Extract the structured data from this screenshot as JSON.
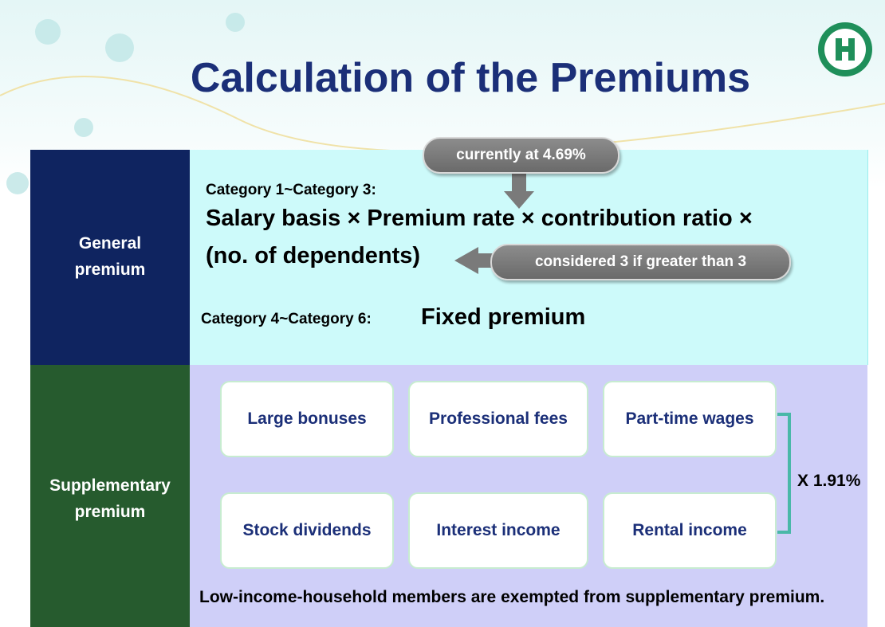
{
  "title": "Calculation of the Premiums",
  "general": {
    "label": "General premium",
    "group_a": "Category 1~Category 3:",
    "formula_line1": "Salary basis × Premium rate × contribution ratio ×",
    "formula_line2": "(no. of dependents)",
    "rate_callout": "currently at 4.69%",
    "dependents_callout": "considered 3 if greater than 3",
    "group_b": "Category 4~Category 6:",
    "group_b_formula": "Fixed premium"
  },
  "supplementary": {
    "label": "Supplementary premium",
    "items": [
      "Large bonuses",
      "Professional fees",
      "Part-time wages",
      "Stock dividends",
      "Interest income",
      "Rental income"
    ],
    "multiplier": "X 1.91%",
    "note": "Low-income-household members are exempted from supplementary premium."
  }
}
